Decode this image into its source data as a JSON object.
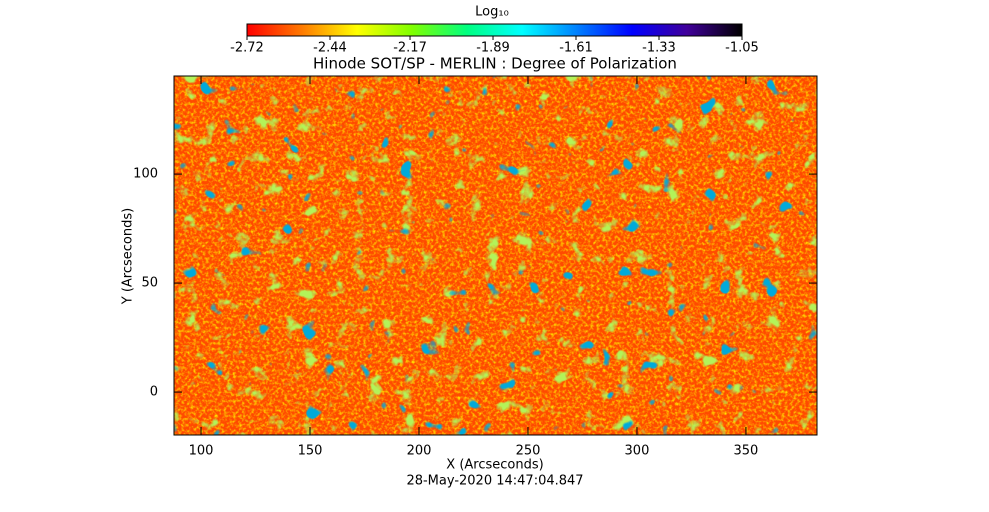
{
  "chart_data": {
    "type": "image",
    "title": "Hinode SOT/SP - MERLIN : Degree of Polarization",
    "x_label": "X (Arcseconds)",
    "y_label": "Y (Arcseconds)",
    "footer": "28-May-2020 14:47:04.847",
    "xlim": [
      87.6,
      382.6
    ],
    "ylim": [
      -19.7,
      145
    ],
    "xticks": [
      100,
      150,
      200,
      250,
      300,
      350
    ],
    "yticks": [
      0,
      50,
      100
    ],
    "colorbar": {
      "label": "Log₁₀",
      "lim": [
        -2.72,
        -1.05
      ],
      "ticks": [
        -2.72,
        -2.44,
        -2.17,
        -1.89,
        -1.61,
        -1.33,
        -1.05
      ],
      "colormap": [
        "#ff0000",
        "#ff7a00",
        "#ffff00",
        "#80ff00",
        "#00ff80",
        "#00ffff",
        "#0080ff",
        "#0000ff",
        "#40009a",
        "#000000"
      ]
    }
  }
}
